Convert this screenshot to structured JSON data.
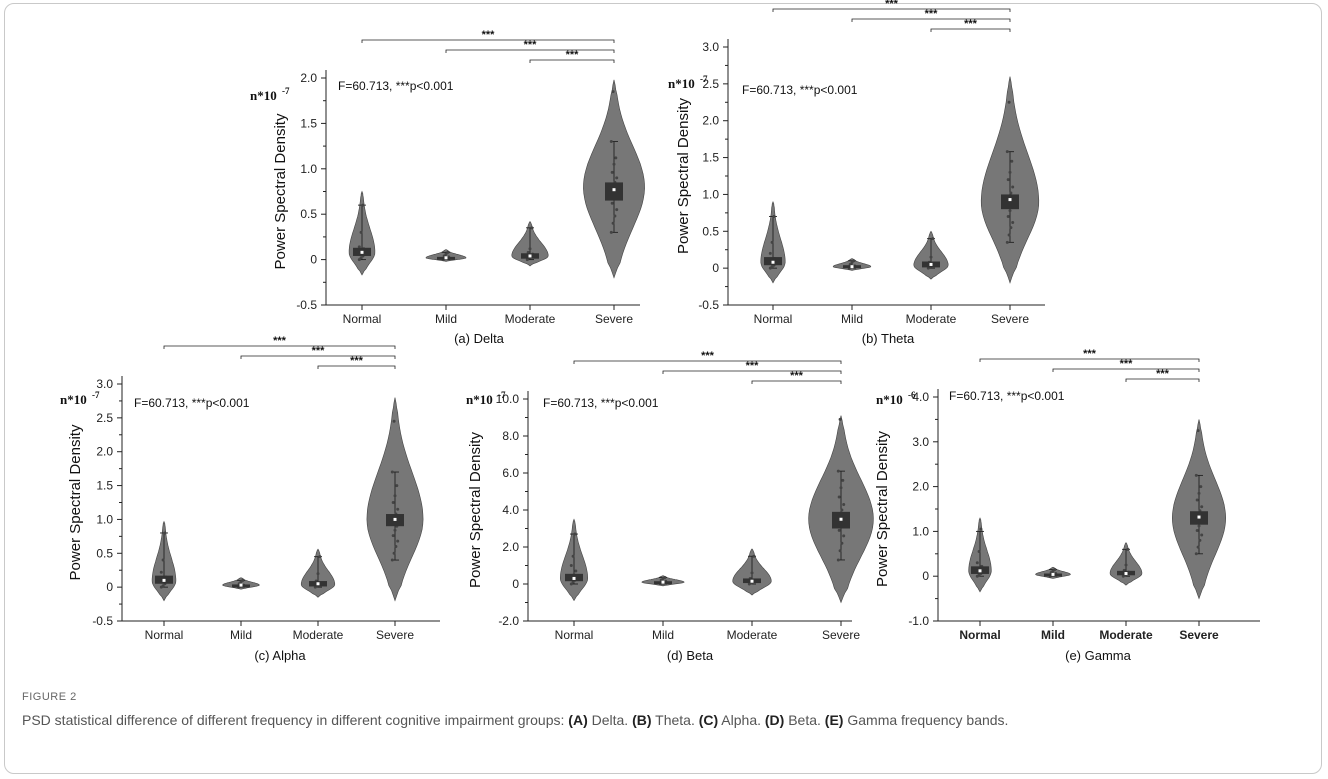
{
  "figure_label": "FIGURE 2",
  "caption": [
    {
      "t": "PSD statistical difference of different frequency in different cognitive impairment groups: "
    },
    {
      "t": "(A)",
      "b": true
    },
    {
      "t": " Delta. "
    },
    {
      "t": "(B)",
      "b": true
    },
    {
      "t": " Theta. "
    },
    {
      "t": "(C)",
      "b": true
    },
    {
      "t": " Alpha. "
    },
    {
      "t": "(D)",
      "b": true
    },
    {
      "t": " Beta. "
    },
    {
      "t": "(E)",
      "b": true
    },
    {
      "t": " Gamma frequency bands."
    }
  ],
  "colors": {
    "violin": "#777777",
    "box": "#333333",
    "axis": "#222222"
  },
  "chart_data": [
    {
      "type": "violin",
      "panel": "(a) Delta",
      "ylabel": "Power Spectral Density",
      "multiplier": "n*10",
      "multiplier_exp": "-7",
      "stat": "F=60.713, ***p<0.001",
      "categories": [
        "Normal",
        "Mild",
        "Moderate",
        "Severe"
      ],
      "ylim": [
        -0.5,
        2.0
      ],
      "yticks": [
        -0.5,
        0,
        0.5,
        1.0,
        1.5,
        2.0
      ],
      "ytick_labels": [
        "-0.5",
        "0",
        "0.5",
        "1.0",
        "1.5",
        "2.0"
      ],
      "bold_x": false,
      "groups": [
        {
          "median": 0.08,
          "q1": 0.04,
          "q3": 0.13,
          "min": 0.0,
          "max": 0.6,
          "vmin": -0.17,
          "vmax": 0.75,
          "mode": 0.08,
          "kw": 0.35,
          "points": [
            0.0,
            0.02,
            0.04,
            0.06,
            0.08,
            0.1,
            0.12,
            0.14,
            0.3,
            0.6
          ]
        },
        {
          "median": 0.02,
          "q1": 0.01,
          "q3": 0.03,
          "min": 0.0,
          "max": 0.08,
          "vmin": -0.02,
          "vmax": 0.11,
          "mode": 0.02,
          "kw": 0.55,
          "points": [
            0.0,
            0.01,
            0.02,
            0.03,
            0.04,
            0.06,
            0.08
          ]
        },
        {
          "median": 0.04,
          "q1": 0.01,
          "q3": 0.07,
          "min": 0.0,
          "max": 0.35,
          "vmin": -0.07,
          "vmax": 0.42,
          "mode": 0.04,
          "kw": 0.5,
          "points": [
            0.0,
            0.02,
            0.04,
            0.06,
            0.08,
            0.12,
            0.35
          ]
        },
        {
          "median": 0.77,
          "q1": 0.65,
          "q3": 0.85,
          "min": 0.3,
          "max": 1.3,
          "vmin": -0.2,
          "vmax": 1.98,
          "mode": 0.8,
          "kw": 0.85,
          "points": [
            0.3,
            0.4,
            0.48,
            0.55,
            0.62,
            0.68,
            0.72,
            0.76,
            0.8,
            0.85,
            0.9,
            0.96,
            1.05,
            1.12,
            1.3,
            1.85
          ]
        }
      ],
      "significance": [
        {
          "from": 0,
          "to": 3,
          "label": "***"
        },
        {
          "from": 1,
          "to": 3,
          "label": "***"
        },
        {
          "from": 2,
          "to": 3,
          "label": "***"
        }
      ]
    },
    {
      "type": "violin",
      "panel": "(b) Theta",
      "ylabel": "Power Spectral Density",
      "multiplier": "n*10",
      "multiplier_exp": "-7",
      "stat": "F=60.713, ***p<0.001",
      "categories": [
        "Normal",
        "Mild",
        "Moderate",
        "Severe"
      ],
      "ylim": [
        -0.5,
        3.0
      ],
      "yticks": [
        -0.5,
        0,
        0.5,
        1.0,
        1.5,
        2.0,
        2.5,
        3.0
      ],
      "ytick_labels": [
        "-0.5",
        "0",
        "0.5",
        "1.0",
        "1.5",
        "2.0",
        "2.5",
        "3.0"
      ],
      "bold_x": false,
      "groups": [
        {
          "median": 0.08,
          "q1": 0.04,
          "q3": 0.15,
          "min": 0.0,
          "max": 0.7,
          "vmin": -0.2,
          "vmax": 0.9,
          "mode": 0.08,
          "kw": 0.35,
          "points": [
            0.0,
            0.02,
            0.04,
            0.06,
            0.08,
            0.1,
            0.13,
            0.2,
            0.35,
            0.7
          ]
        },
        {
          "median": 0.02,
          "q1": 0.01,
          "q3": 0.04,
          "min": 0.0,
          "max": 0.1,
          "vmin": -0.03,
          "vmax": 0.13,
          "mode": 0.02,
          "kw": 0.55,
          "points": [
            0.0,
            0.01,
            0.02,
            0.03,
            0.05,
            0.08,
            0.1
          ]
        },
        {
          "median": 0.05,
          "q1": 0.01,
          "q3": 0.09,
          "min": 0.0,
          "max": 0.4,
          "vmin": -0.15,
          "vmax": 0.5,
          "mode": 0.04,
          "kw": 0.5,
          "points": [
            0.0,
            0.02,
            0.04,
            0.06,
            0.08,
            0.15,
            0.4
          ]
        },
        {
          "median": 0.93,
          "q1": 0.8,
          "q3": 1.0,
          "min": 0.35,
          "max": 1.58,
          "vmin": -0.2,
          "vmax": 2.6,
          "mode": 0.9,
          "kw": 0.85,
          "points": [
            0.35,
            0.45,
            0.55,
            0.62,
            0.7,
            0.78,
            0.84,
            0.9,
            0.96,
            1.02,
            1.1,
            1.2,
            1.3,
            1.45,
            1.58,
            2.25
          ]
        }
      ],
      "significance": [
        {
          "from": 0,
          "to": 3,
          "label": "***"
        },
        {
          "from": 1,
          "to": 3,
          "label": "***"
        },
        {
          "from": 2,
          "to": 3,
          "label": "***"
        }
      ]
    },
    {
      "type": "violin",
      "panel": "(c) Alpha",
      "ylabel": "Power Spectral Density",
      "multiplier": "n*10",
      "multiplier_exp": "-7",
      "stat": "F=60.713, ***p<0.001",
      "categories": [
        "Normal",
        "Mild",
        "Moderate",
        "Severe"
      ],
      "ylim": [
        -0.5,
        3.0
      ],
      "yticks": [
        -0.5,
        0,
        0.5,
        1.0,
        1.5,
        2.0,
        2.5,
        3.0
      ],
      "ytick_labels": [
        "-0.5",
        "0",
        "0.5",
        "1.0",
        "1.5",
        "2.0",
        "2.5",
        "3.0"
      ],
      "bold_x": false,
      "groups": [
        {
          "median": 0.1,
          "q1": 0.05,
          "q3": 0.17,
          "min": 0.0,
          "max": 0.8,
          "vmin": -0.2,
          "vmax": 0.97,
          "mode": 0.09,
          "kw": 0.35,
          "points": [
            0.0,
            0.02,
            0.05,
            0.08,
            0.1,
            0.12,
            0.15,
            0.22,
            0.4,
            0.8
          ]
        },
        {
          "median": 0.03,
          "q1": 0.01,
          "q3": 0.04,
          "min": 0.0,
          "max": 0.1,
          "vmin": -0.03,
          "vmax": 0.14,
          "mode": 0.03,
          "kw": 0.55,
          "points": [
            0.0,
            0.01,
            0.02,
            0.03,
            0.05,
            0.08,
            0.1
          ]
        },
        {
          "median": 0.05,
          "q1": 0.01,
          "q3": 0.09,
          "min": 0.0,
          "max": 0.45,
          "vmin": -0.15,
          "vmax": 0.56,
          "mode": 0.04,
          "kw": 0.5,
          "points": [
            0.0,
            0.02,
            0.04,
            0.06,
            0.09,
            0.2,
            0.45
          ]
        },
        {
          "median": 1.0,
          "q1": 0.9,
          "q3": 1.08,
          "min": 0.4,
          "max": 1.7,
          "vmin": -0.2,
          "vmax": 2.8,
          "mode": 1.0,
          "kw": 0.85,
          "points": [
            0.4,
            0.5,
            0.6,
            0.68,
            0.76,
            0.84,
            0.9,
            0.96,
            1.02,
            1.08,
            1.15,
            1.25,
            1.35,
            1.5,
            1.7,
            2.45
          ]
        }
      ],
      "significance": [
        {
          "from": 0,
          "to": 3,
          "label": "***"
        },
        {
          "from": 1,
          "to": 3,
          "label": "***"
        },
        {
          "from": 2,
          "to": 3,
          "label": "***"
        }
      ]
    },
    {
      "type": "violin",
      "panel": "(d) Beta",
      "ylabel": "Power Spectral Density",
      "multiplier": "n*10",
      "multiplier_exp": "-7",
      "stat": "F=60.713, ***p<0.001",
      "categories": [
        "Normal",
        "Mild",
        "Moderate",
        "Severe"
      ],
      "ylim": [
        -2.0,
        10.0
      ],
      "yticks": [
        -2,
        0,
        2,
        4,
        6,
        8,
        10
      ],
      "ytick_labels": [
        "-2.0",
        "0",
        "2.0",
        "4.0",
        "6.0",
        "8.0",
        "10.0"
      ],
      "bold_x": false,
      "groups": [
        {
          "median": 0.3,
          "q1": 0.15,
          "q3": 0.55,
          "min": 0.0,
          "max": 2.7,
          "vmin": -0.9,
          "vmax": 3.5,
          "mode": 0.3,
          "kw": 0.35,
          "points": [
            0.0,
            0.1,
            0.2,
            0.3,
            0.4,
            0.5,
            0.7,
            1.0,
            1.5,
            2.7
          ]
        },
        {
          "median": 0.1,
          "q1": 0.05,
          "q3": 0.15,
          "min": 0.0,
          "max": 0.35,
          "vmin": -0.1,
          "vmax": 0.45,
          "mode": 0.1,
          "kw": 0.55,
          "points": [
            0.0,
            0.05,
            0.1,
            0.15,
            0.2,
            0.3,
            0.35
          ]
        },
        {
          "median": 0.15,
          "q1": 0.05,
          "q3": 0.3,
          "min": 0.0,
          "max": 1.5,
          "vmin": -0.6,
          "vmax": 1.9,
          "mode": 0.15,
          "kw": 0.5,
          "points": [
            0.0,
            0.05,
            0.12,
            0.2,
            0.3,
            0.6,
            1.5
          ]
        },
        {
          "median": 3.5,
          "q1": 3.0,
          "q3": 3.9,
          "min": 1.3,
          "max": 6.1,
          "vmin": -1.0,
          "vmax": 9.1,
          "mode": 3.5,
          "kw": 0.85,
          "points": [
            1.3,
            1.8,
            2.2,
            2.6,
            2.9,
            3.2,
            3.4,
            3.6,
            3.8,
            4.0,
            4.3,
            4.7,
            5.2,
            5.6,
            6.1,
            8.9
          ]
        }
      ],
      "significance": [
        {
          "from": 0,
          "to": 3,
          "label": "***"
        },
        {
          "from": 1,
          "to": 3,
          "label": "***"
        },
        {
          "from": 2,
          "to": 3,
          "label": "***"
        }
      ]
    },
    {
      "type": "violin",
      "panel": "(e) Gamma",
      "ylabel": "Power Spectral Density",
      "multiplier": "n*10",
      "multiplier_exp": "-6",
      "stat": "F=60.713, ***p<0.001",
      "categories": [
        "Normal",
        "Mild",
        "Moderate",
        "Severe"
      ],
      "ylim": [
        -1.0,
        4.0
      ],
      "yticks": [
        -1,
        0,
        1,
        2,
        3,
        4
      ],
      "ytick_labels": [
        "-1.0",
        "0",
        "1.0",
        "2.0",
        "3.0",
        "4.0"
      ],
      "bold_x": true,
      "groups": [
        {
          "median": 0.12,
          "q1": 0.05,
          "q3": 0.22,
          "min": 0.0,
          "max": 1.0,
          "vmin": -0.35,
          "vmax": 1.3,
          "mode": 0.12,
          "kw": 0.35,
          "points": [
            0.0,
            0.03,
            0.06,
            0.1,
            0.13,
            0.17,
            0.22,
            0.3,
            0.55,
            1.05
          ]
        },
        {
          "median": 0.04,
          "q1": 0.02,
          "q3": 0.06,
          "min": 0.0,
          "max": 0.15,
          "vmin": -0.05,
          "vmax": 0.2,
          "mode": 0.04,
          "kw": 0.55,
          "points": [
            0.0,
            0.02,
            0.04,
            0.06,
            0.08,
            0.12,
            0.15
          ]
        },
        {
          "median": 0.06,
          "q1": 0.02,
          "q3": 0.12,
          "min": 0.0,
          "max": 0.6,
          "vmin": -0.2,
          "vmax": 0.75,
          "mode": 0.06,
          "kw": 0.5,
          "points": [
            0.0,
            0.03,
            0.06,
            0.09,
            0.13,
            0.25,
            0.6
          ]
        },
        {
          "median": 1.32,
          "q1": 1.15,
          "q3": 1.45,
          "min": 0.5,
          "max": 2.25,
          "vmin": -0.5,
          "vmax": 3.5,
          "mode": 1.3,
          "kw": 0.85,
          "points": [
            0.5,
            0.65,
            0.8,
            0.92,
            1.02,
            1.12,
            1.22,
            1.3,
            1.38,
            1.46,
            1.55,
            1.7,
            1.85,
            2.0,
            2.25,
            3.25
          ]
        }
      ],
      "significance": [
        {
          "from": 0,
          "to": 3,
          "label": "***"
        },
        {
          "from": 1,
          "to": 3,
          "label": "***"
        },
        {
          "from": 2,
          "to": 3,
          "label": "***"
        }
      ]
    }
  ]
}
